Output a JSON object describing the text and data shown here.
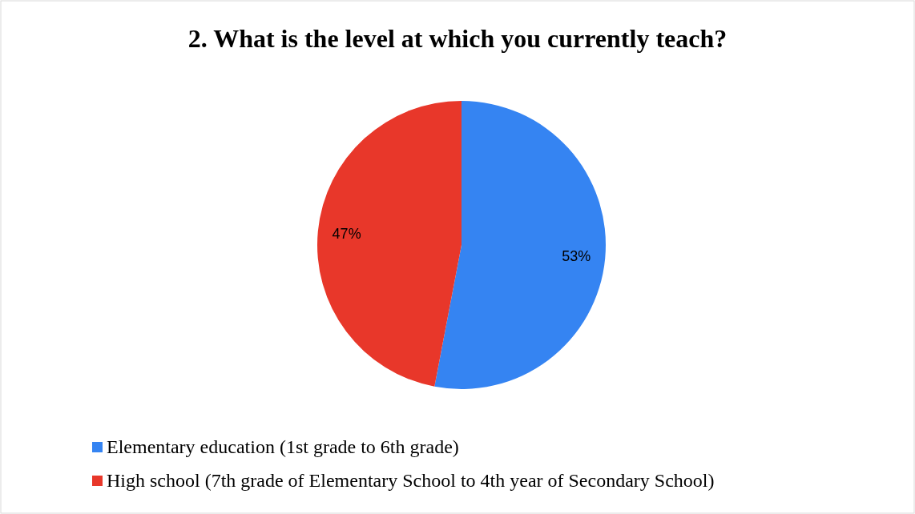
{
  "chart_data": {
    "type": "pie",
    "title": "2. What is the level at which you currently teach?",
    "categories": [
      "Elementary education (1st grade to 6th grade)",
      "High school (7th grade of Elementary School to 4th year of Secondary School)"
    ],
    "values": [
      53,
      47
    ],
    "colors": [
      "#3584f2",
      "#e8372a"
    ],
    "value_labels": [
      "53%",
      "47%"
    ],
    "legend": "bottom"
  }
}
